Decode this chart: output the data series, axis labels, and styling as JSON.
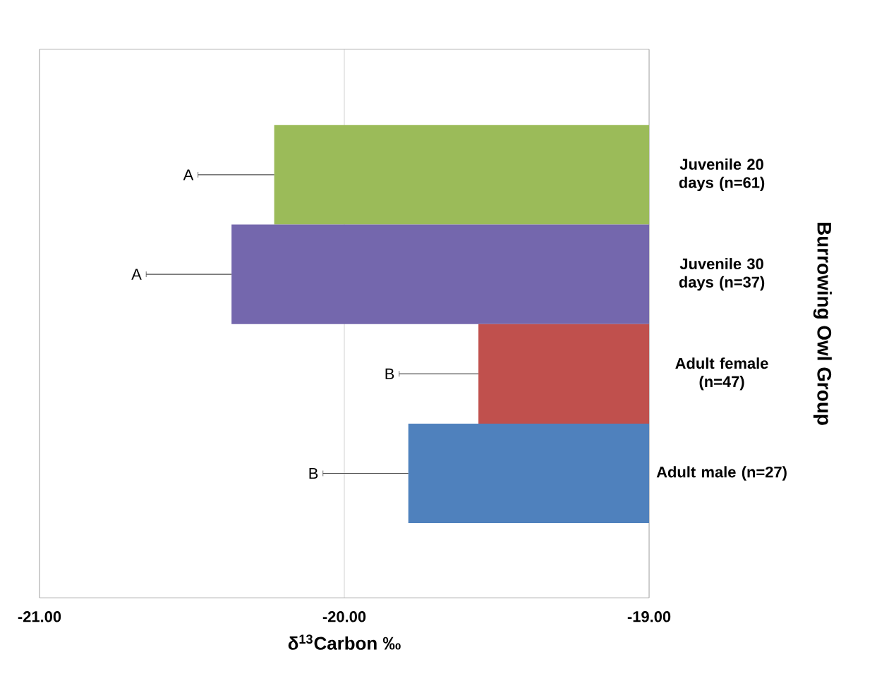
{
  "chart_data": {
    "type": "bar",
    "orientation": "horizontal",
    "categories": [
      "Juvenile 20 days (n=61)",
      "Juvenile 30 days (n=37)",
      "Adult female (n=47)",
      "Adult male (n=27)"
    ],
    "values": [
      -20.23,
      -20.37,
      -19.56,
      -19.79
    ],
    "colors": [
      "#9bbb59",
      "#7467ad",
      "#c0504d",
      "#4f81bd"
    ],
    "errors": [
      [
        -20.48,
        -20.23
      ],
      [
        -20.65,
        -20.37
      ],
      [
        -19.82,
        -19.56
      ],
      [
        -20.07,
        -19.79
      ]
    ],
    "xlim": [
      -21,
      -19
    ],
    "xticks": [
      {
        "value": -21,
        "label": "-21.00"
      },
      {
        "value": -20,
        "label": "-20.00"
      },
      {
        "value": -19,
        "label": "-19.00"
      }
    ],
    "xlabel": "δ$^{13}$Carbon ‰",
    "ylabel": "Burrowing Owl Group",
    "grid": "x",
    "annotations": [
      "A",
      "A",
      "B",
      "B"
    ]
  }
}
